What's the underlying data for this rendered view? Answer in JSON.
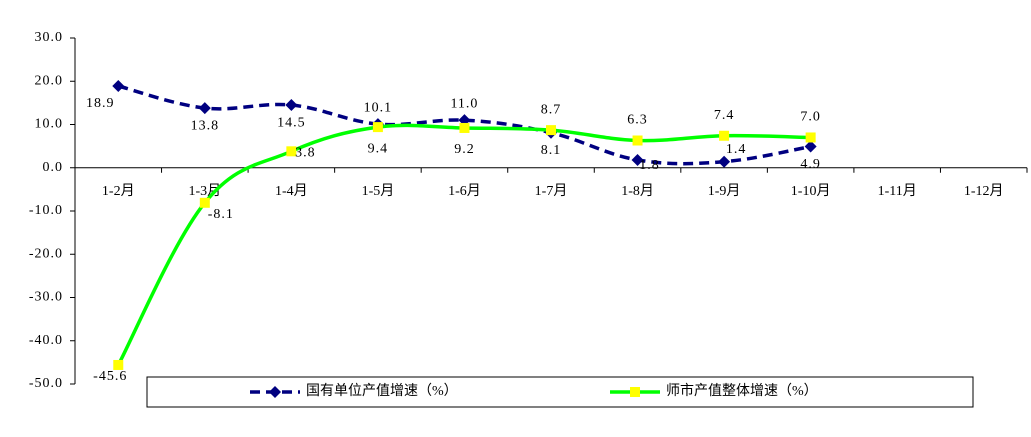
{
  "chart_data": {
    "type": "line",
    "categories": [
      "1-2月",
      "1-3月",
      "1-4月",
      "1-5月",
      "1-6月",
      "1-7月",
      "1-8月",
      "1-9月",
      "1-10月",
      "1-11月",
      "1-12月"
    ],
    "series": [
      {
        "name": "国有单位产值增速（%）",
        "color": "#000080",
        "marker_color": "#000080",
        "values": [
          18.9,
          13.8,
          14.5,
          10.1,
          11.0,
          8.1,
          1.8,
          1.4,
          4.9,
          null,
          null
        ],
        "value_labels": [
          "18.9",
          "13.8",
          "14.5",
          "10.1",
          "11.0",
          "8.1",
          "1.8",
          "1.4",
          "4.9",
          null,
          null
        ]
      },
      {
        "name": "师市产值整体增速（%）",
        "color": "#00ff00",
        "marker_color": "#ffff00",
        "values": [
          -45.6,
          -8.1,
          3.8,
          9.4,
          9.2,
          8.7,
          6.3,
          7.4,
          7.0,
          null,
          null
        ],
        "value_labels": [
          "-45.6",
          "-8.1",
          "3.8",
          "9.4",
          "9.2",
          "8.7",
          "6.3",
          "7.4",
          "7.0",
          null,
          null
        ]
      }
    ],
    "ylim": [
      -50,
      30
    ],
    "yticks": [
      {
        "value": -50,
        "label": "-50.0"
      },
      {
        "value": -40,
        "label": "-40.0"
      },
      {
        "value": -30,
        "label": "-30.0"
      },
      {
        "value": -20,
        "label": "-20.0"
      },
      {
        "value": -10,
        "label": "-10.0"
      },
      {
        "value": 0,
        "label": "0.0"
      },
      {
        "value": 10,
        "label": "10.0"
      },
      {
        "value": 20,
        "label": "20.0"
      },
      {
        "value": 30,
        "label": "30.0"
      }
    ],
    "grid": false,
    "legend": "bottom"
  }
}
